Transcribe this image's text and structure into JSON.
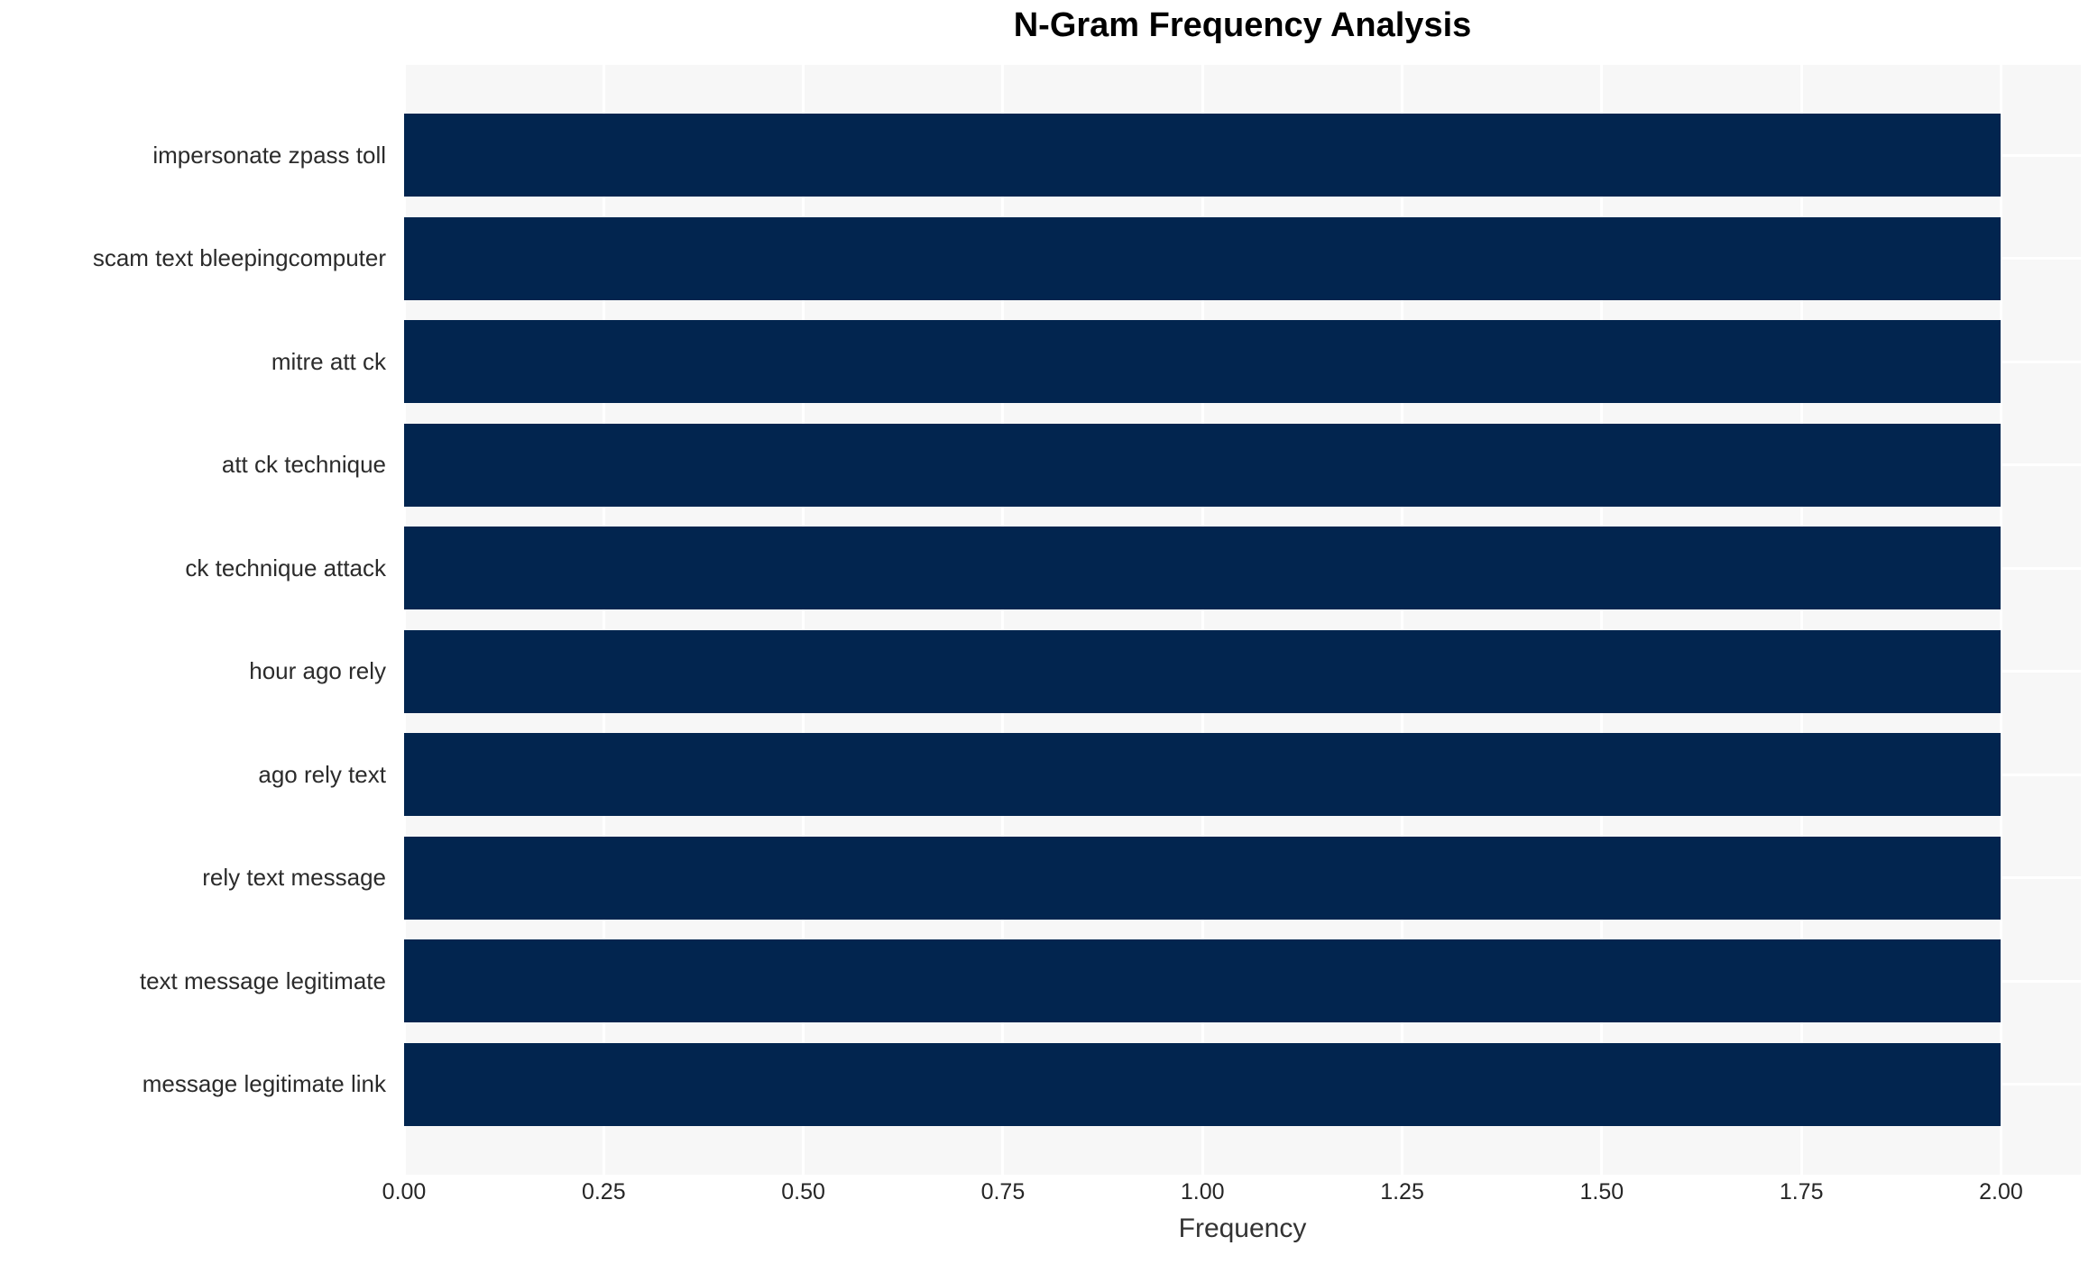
{
  "chart_data": {
    "type": "bar",
    "orientation": "horizontal",
    "title": "N-Gram Frequency Analysis",
    "xlabel": "Frequency",
    "ylabel": "",
    "categories": [
      "impersonate zpass toll",
      "scam text bleepingcomputer",
      "mitre att ck",
      "att ck technique",
      "ck technique attack",
      "hour ago rely",
      "ago rely text",
      "rely text message",
      "text message legitimate",
      "message legitimate link"
    ],
    "values": [
      2,
      2,
      2,
      2,
      2,
      2,
      2,
      2,
      2,
      2
    ],
    "xlim": [
      0,
      2.1
    ],
    "xticks": [
      "0.00",
      "0.25",
      "0.50",
      "0.75",
      "1.00",
      "1.25",
      "1.50",
      "1.75",
      "2.00"
    ],
    "xtick_values": [
      0,
      0.25,
      0.5,
      0.75,
      1.0,
      1.25,
      1.5,
      1.75,
      2.0
    ],
    "grid": true,
    "legend": false,
    "colors": {
      "bar": "#02254f",
      "plot_background": "#f7f7f7",
      "gridline": "#ffffff",
      "tick_text": "#262626",
      "category_text": "#2b2b2b",
      "axis_label_text": "#333333",
      "title_text": "#000000",
      "page_background": "#ffffff"
    }
  }
}
